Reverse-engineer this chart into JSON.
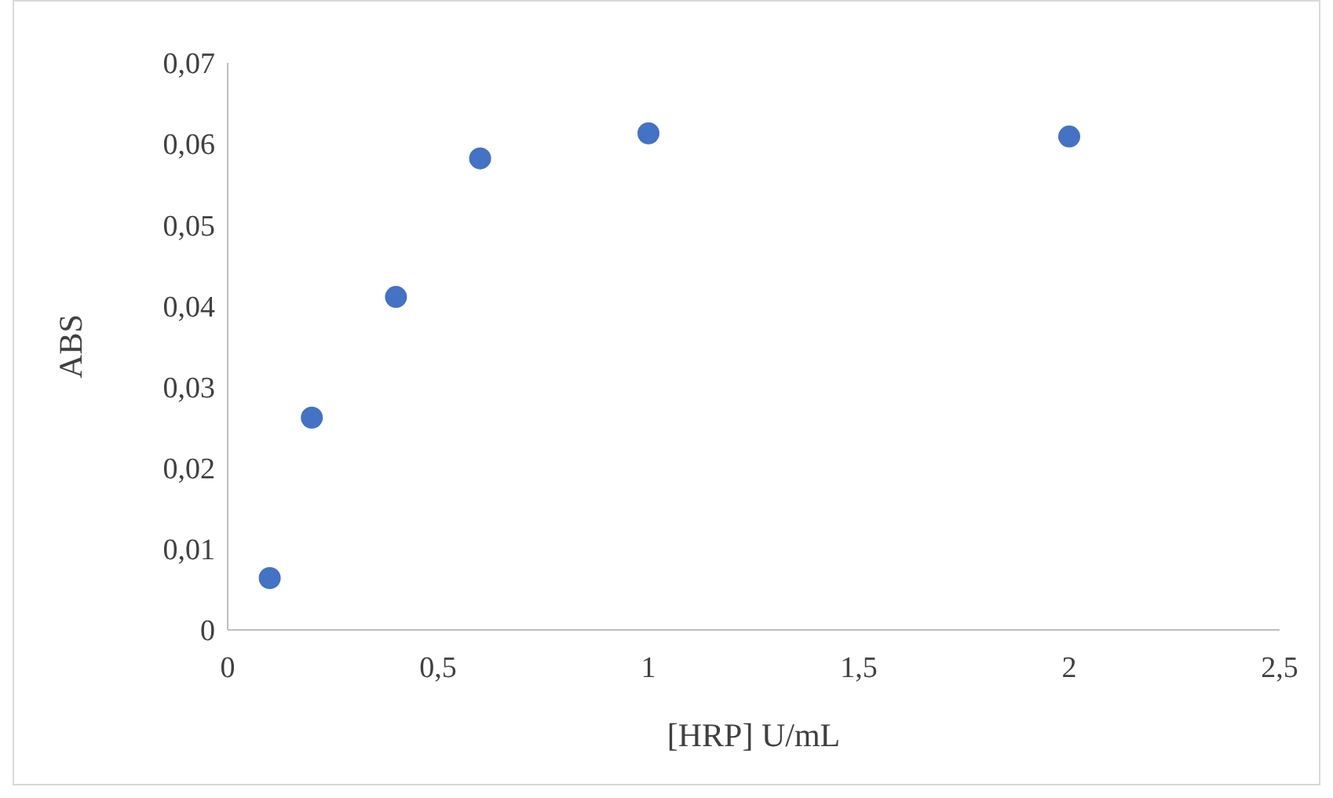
{
  "chart_data": {
    "type": "scatter",
    "xlabel": "[HRP] U/mL",
    "ylabel": "ABS",
    "x": [
      0.1,
      0.2,
      0.4,
      0.6,
      1,
      2
    ],
    "series": [
      {
        "color": "#4472c4",
        "values": [
          0.0064,
          0.0262,
          0.0411,
          0.0582,
          0.0613,
          0.0609
        ]
      }
    ],
    "xlim": [
      0,
      2.5
    ],
    "ylim": [
      0,
      0.07
    ],
    "xticks": [
      0,
      {
        "value": 0.5,
        "label": "0,5"
      },
      1,
      {
        "value": 1.5,
        "label": "1,5"
      },
      2,
      {
        "value": 2.5,
        "label": "2,5"
      }
    ],
    "yticks": [
      0,
      {
        "value": 0.01,
        "label": "0,01"
      },
      {
        "value": 0.02,
        "label": "0,02"
      },
      {
        "value": 0.03,
        "label": "0,03"
      },
      {
        "value": 0.04,
        "label": "0,04"
      },
      {
        "value": 0.05,
        "label": "0,05"
      },
      {
        "value": 0.06,
        "label": "0,06"
      },
      {
        "value": 0.07,
        "label": "0,07"
      }
    ],
    "grid": false,
    "marker": "circle"
  }
}
